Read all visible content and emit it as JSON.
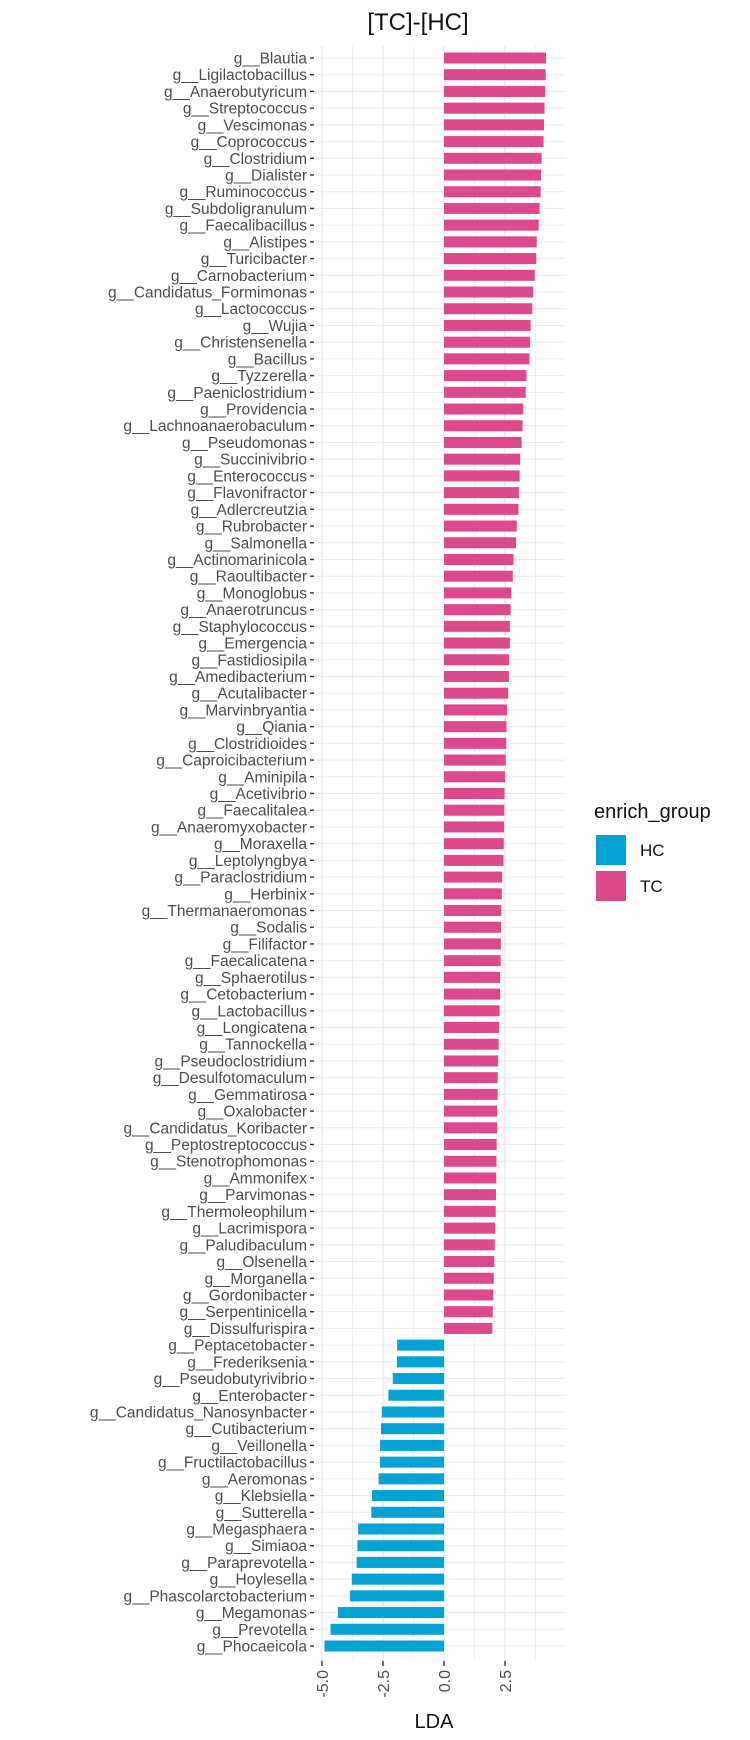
{
  "chart_data": {
    "type": "bar",
    "orientation": "horizontal",
    "title": "[TC]-[HC]",
    "xlabel": "LDA",
    "ylabel": "",
    "xlim": [
      -5.0,
      4.7
    ],
    "xticks": [
      -5.0,
      -2.5,
      0.0,
      2.5
    ],
    "xtick_labels": [
      "-5.0",
      "-2.5",
      "0.0",
      "2.5"
    ],
    "grid": true,
    "legend": {
      "title": "enrich_group",
      "placement": "right",
      "entries": [
        {
          "name": "HC",
          "color": "#04a3d4"
        },
        {
          "name": "TC",
          "color": "#dd4a8c"
        }
      ]
    },
    "categories": [
      "g__Blautia",
      "g__Ligilactobacillus",
      "g__Anaerobutyricum",
      "g__Streptococcus",
      "g__Vescimonas",
      "g__Coprococcus",
      "g__Clostridium",
      "g__Dialister",
      "g__Ruminococcus",
      "g__Subdoligranulum",
      "g__Faecalibacillus",
      "g__Alistipes",
      "g__Turicibacter",
      "g__Carnobacterium",
      "g__Candidatus_Formimonas",
      "g__Lactococcus",
      "g__Wujia",
      "g__Christensenella",
      "g__Bacillus",
      "g__Tyzzerella",
      "g__Paeniclostridium",
      "g__Providencia",
      "g__Lachnoanaerobaculum",
      "g__Pseudomonas",
      "g__Succinivibrio",
      "g__Enterococcus",
      "g__Flavonifractor",
      "g__Adlercreutzia",
      "g__Rubrobacter",
      "g__Salmonella",
      "g__Actinomarinicola",
      "g__Raoultibacter",
      "g__Monoglobus",
      "g__Anaerotruncus",
      "g__Staphylococcus",
      "g__Emergencia",
      "g__Fastidiosipila",
      "g__Amedibacterium",
      "g__Acutalibacter",
      "g__Marvinbryantia",
      "g__Qiania",
      "g__Clostridioides",
      "g__Caproicibacterium",
      "g__Aminipila",
      "g__Acetivibrio",
      "g__Faecalitalea",
      "g__Anaeromyxobacter",
      "g__Moraxella",
      "g__Leptolyngbya",
      "g__Paraclostridium",
      "g__Herbinix",
      "g__Thermanaeromonas",
      "g__Sodalis",
      "g__Filifactor",
      "g__Faecalicatena",
      "g__Sphaerotilus",
      "g__Cetobacterium",
      "g__Lactobacillus",
      "g__Longicatena",
      "g__Tannockella",
      "g__Pseudoclostridium",
      "g__Desulfotomaculum",
      "g__Gemmatirosa",
      "g__Oxalobacter",
      "g__Candidatus_Koribacter",
      "g__Peptostreptococcus",
      "g__Stenotrophomonas",
      "g__Ammonifex",
      "g__Parvimonas",
      "g__Thermoleophilum",
      "g__Lacrimispora",
      "g__Paludibaculum",
      "g__Olsenella",
      "g__Morganella",
      "g__Gordonibacter",
      "g__Serpentinicella",
      "g__Dissulfurispira",
      "g__Peptacetobacter",
      "g__Frederiksenia",
      "g__Pseudobutyrivibrio",
      "g__Enterobacter",
      "g__Candidatus_Nanosynbacter",
      "g__Cutibacterium",
      "g__Veillonella",
      "g__Fructilactobacillus",
      "g__Aeromonas",
      "g__Klebsiella",
      "g__Sutterella",
      "g__Megasphaera",
      "g__Simiaoa",
      "g__Paraprevotella",
      "g__Hoylesella",
      "g__Phascolarctobacterium",
      "g__Megamonas",
      "g__Prevotella",
      "g__Phocaeicola"
    ],
    "values": [
      4.18,
      4.17,
      4.15,
      4.12,
      4.1,
      4.08,
      4.0,
      3.98,
      3.96,
      3.92,
      3.88,
      3.8,
      3.78,
      3.72,
      3.66,
      3.62,
      3.55,
      3.53,
      3.5,
      3.38,
      3.35,
      3.25,
      3.22,
      3.18,
      3.12,
      3.1,
      3.07,
      3.05,
      2.98,
      2.95,
      2.85,
      2.82,
      2.76,
      2.73,
      2.7,
      2.7,
      2.67,
      2.66,
      2.63,
      2.58,
      2.56,
      2.55,
      2.53,
      2.5,
      2.48,
      2.47,
      2.46,
      2.45,
      2.44,
      2.38,
      2.37,
      2.35,
      2.34,
      2.33,
      2.32,
      2.3,
      2.3,
      2.28,
      2.26,
      2.24,
      2.22,
      2.2,
      2.2,
      2.18,
      2.18,
      2.16,
      2.15,
      2.14,
      2.13,
      2.12,
      2.1,
      2.08,
      2.06,
      2.04,
      2.02,
      2.0,
      1.98,
      -1.92,
      -1.93,
      -2.1,
      -2.28,
      -2.55,
      -2.58,
      -2.62,
      -2.63,
      -2.68,
      -2.95,
      -2.98,
      -3.52,
      -3.55,
      -3.58,
      -3.78,
      -3.85,
      -4.35,
      -4.65,
      -4.9
    ],
    "groups": [
      "TC",
      "TC",
      "TC",
      "TC",
      "TC",
      "TC",
      "TC",
      "TC",
      "TC",
      "TC",
      "TC",
      "TC",
      "TC",
      "TC",
      "TC",
      "TC",
      "TC",
      "TC",
      "TC",
      "TC",
      "TC",
      "TC",
      "TC",
      "TC",
      "TC",
      "TC",
      "TC",
      "TC",
      "TC",
      "TC",
      "TC",
      "TC",
      "TC",
      "TC",
      "TC",
      "TC",
      "TC",
      "TC",
      "TC",
      "TC",
      "TC",
      "TC",
      "TC",
      "TC",
      "TC",
      "TC",
      "TC",
      "TC",
      "TC",
      "TC",
      "TC",
      "TC",
      "TC",
      "TC",
      "TC",
      "TC",
      "TC",
      "TC",
      "TC",
      "TC",
      "TC",
      "TC",
      "TC",
      "TC",
      "TC",
      "TC",
      "TC",
      "TC",
      "TC",
      "TC",
      "TC",
      "TC",
      "TC",
      "TC",
      "TC",
      "TC",
      "TC",
      "HC",
      "HC",
      "HC",
      "HC",
      "HC",
      "HC",
      "HC",
      "HC",
      "HC",
      "HC",
      "HC",
      "HC",
      "HC",
      "HC",
      "HC",
      "HC",
      "HC",
      "HC",
      "HC"
    ]
  }
}
